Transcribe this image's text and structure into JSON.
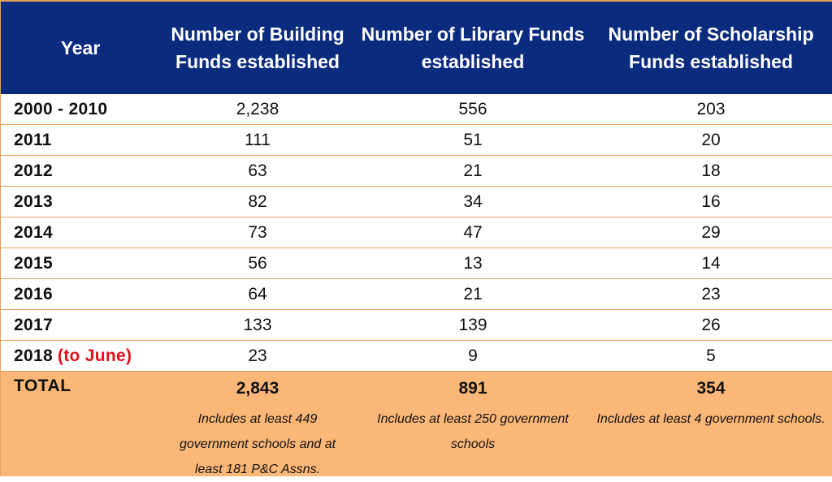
{
  "header": {
    "year": "Year",
    "building": "Number of Building Funds established",
    "library": "Number of Library Funds established",
    "scholarship": "Number of Scholarship Funds established"
  },
  "rows": [
    {
      "year": "2000 - 2010",
      "note": "",
      "building": "2,238",
      "library": "556",
      "scholarship": "203"
    },
    {
      "year": "2011",
      "note": "",
      "building": "111",
      "library": "51",
      "scholarship": "20"
    },
    {
      "year": "2012",
      "note": "",
      "building": "63",
      "library": "21",
      "scholarship": "18"
    },
    {
      "year": "2013",
      "note": "",
      "building": "82",
      "library": "34",
      "scholarship": "16"
    },
    {
      "year": "2014",
      "note": "",
      "building": "73",
      "library": "47",
      "scholarship": "29"
    },
    {
      "year": "2015",
      "note": "",
      "building": "56",
      "library": "13",
      "scholarship": "14"
    },
    {
      "year": "2016",
      "note": "",
      "building": "64",
      "library": "21",
      "scholarship": "23"
    },
    {
      "year": "2017",
      "note": "",
      "building": "133",
      "library": "139",
      "scholarship": "26"
    },
    {
      "year": "2018",
      "note": "(to June)",
      "building": "23",
      "library": "9",
      "scholarship": "5"
    }
  ],
  "total": {
    "label": "TOTAL",
    "building": "2,843",
    "library": "891",
    "scholarship": "354",
    "building_note": "Includes at least 449 government schools and at least 181 P&C Assns.",
    "library_note": "Includes at least 250 government schools",
    "scholarship_note": "Includes at least 4 government schools."
  },
  "colors": {
    "header_bg": "#0b2b7e",
    "total_bg": "#fbb777",
    "border": "#e8a05a",
    "highlight_text": "#e0101a"
  }
}
